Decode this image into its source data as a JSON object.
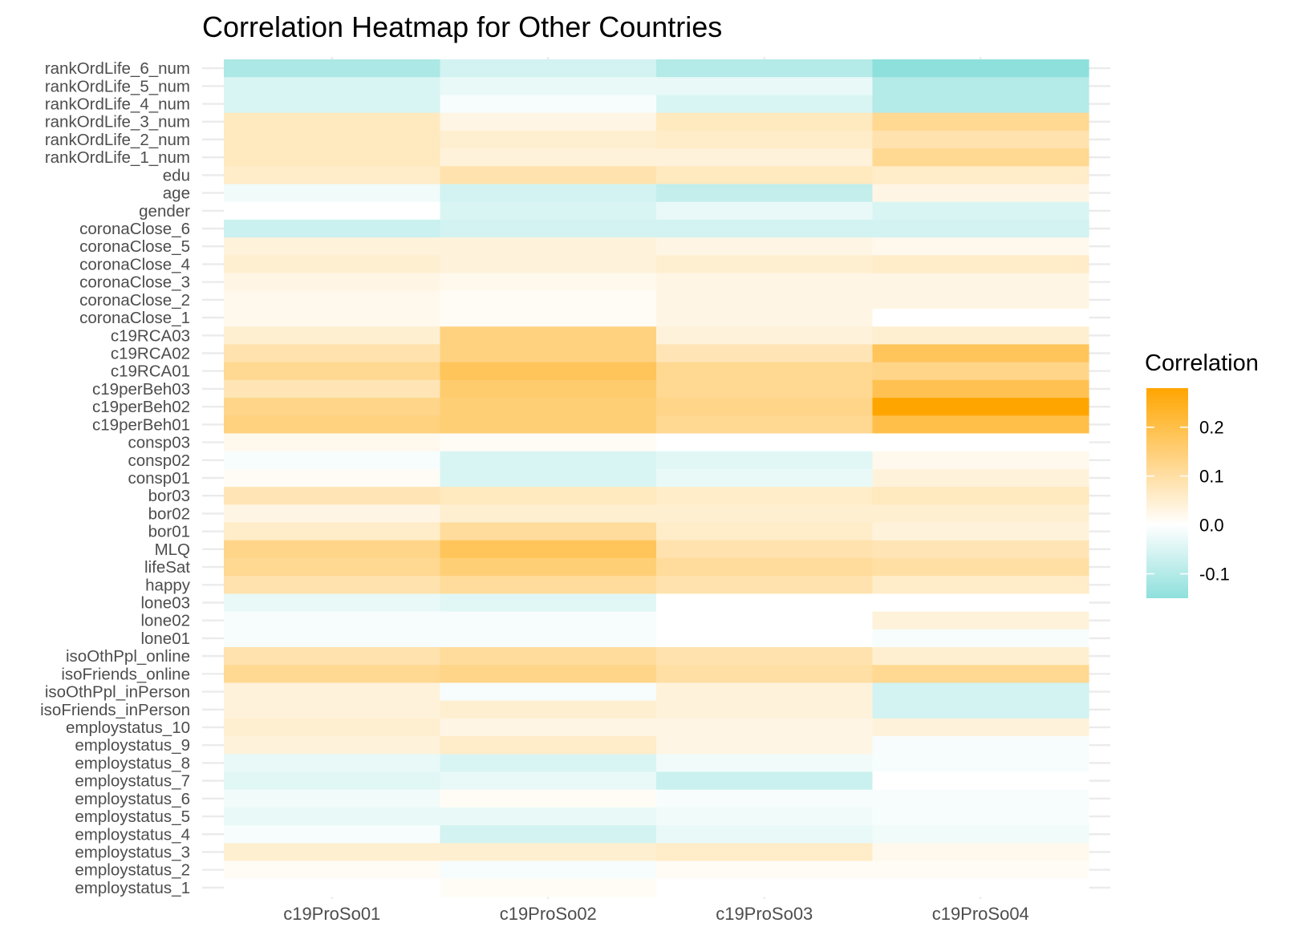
{
  "chart_data": {
    "type": "heatmap",
    "title": "Correlation Heatmap for Other Countries",
    "xlabel": "",
    "ylabel": "",
    "x_categories": [
      "c19ProSo01",
      "c19ProSo02",
      "c19ProSo03",
      "c19ProSo04"
    ],
    "y_categories": [
      "rankOrdLife_6_num",
      "rankOrdLife_5_num",
      "rankOrdLife_4_num",
      "rankOrdLife_3_num",
      "rankOrdLife_2_num",
      "rankOrdLife_1_num",
      "edu",
      "age",
      "gender",
      "coronaClose_6",
      "coronaClose_5",
      "coronaClose_4",
      "coronaClose_3",
      "coronaClose_2",
      "coronaClose_1",
      "c19RCA03",
      "c19RCA02",
      "c19RCA01",
      "c19perBeh03",
      "c19perBeh02",
      "c19perBeh01",
      "consp03",
      "consp02",
      "consp01",
      "bor03",
      "bor02",
      "bor01",
      "MLQ",
      "lifeSat",
      "happy",
      "lone03",
      "lone02",
      "lone01",
      "isoOthPpl_online",
      "isoFriends_online",
      "isoOthPpl_inPerson",
      "isoFriends_inPerson",
      "employstatus_10",
      "employstatus_9",
      "employstatus_8",
      "employstatus_7",
      "employstatus_6",
      "employstatus_5",
      "employstatus_4",
      "employstatus_3",
      "employstatus_2",
      "employstatus_1"
    ],
    "values": [
      [
        -0.11,
        -0.06,
        -0.1,
        -0.15
      ],
      [
        -0.05,
        -0.03,
        -0.03,
        -0.1
      ],
      [
        -0.05,
        -0.01,
        -0.05,
        -0.1
      ],
      [
        0.07,
        0.03,
        0.07,
        0.12
      ],
      [
        0.07,
        0.05,
        0.06,
        0.09
      ],
      [
        0.07,
        0.04,
        0.04,
        0.12
      ],
      [
        0.06,
        0.09,
        0.07,
        0.06
      ],
      [
        -0.02,
        -0.06,
        -0.08,
        0.03
      ],
      [
        0.0,
        -0.05,
        -0.03,
        -0.05
      ],
      [
        -0.07,
        -0.06,
        -0.06,
        -0.06
      ],
      [
        0.04,
        0.04,
        0.03,
        0.02
      ],
      [
        0.05,
        0.04,
        0.05,
        0.06
      ],
      [
        0.03,
        0.02,
        0.03,
        0.03
      ],
      [
        0.02,
        0.01,
        0.03,
        0.03
      ],
      [
        0.02,
        0.01,
        0.03,
        0.0
      ],
      [
        0.05,
        0.14,
        0.04,
        0.05
      ],
      [
        0.09,
        0.14,
        0.08,
        0.18
      ],
      [
        0.12,
        0.18,
        0.12,
        0.13
      ],
      [
        0.08,
        0.16,
        0.12,
        0.19
      ],
      [
        0.13,
        0.15,
        0.13,
        0.28
      ],
      [
        0.14,
        0.15,
        0.12,
        0.2
      ],
      [
        0.02,
        0.01,
        0.0,
        0.0
      ],
      [
        -0.01,
        -0.05,
        -0.04,
        0.02
      ],
      [
        0.01,
        -0.05,
        -0.03,
        0.04
      ],
      [
        0.08,
        0.07,
        0.06,
        0.07
      ],
      [
        0.03,
        0.05,
        0.05,
        0.05
      ],
      [
        0.06,
        0.11,
        0.06,
        0.04
      ],
      [
        0.13,
        0.18,
        0.09,
        0.08
      ],
      [
        0.12,
        0.15,
        0.11,
        0.1
      ],
      [
        0.09,
        0.11,
        0.09,
        0.06
      ],
      [
        -0.03,
        -0.04,
        0.0,
        0.0
      ],
      [
        -0.01,
        -0.01,
        0.0,
        0.04
      ],
      [
        -0.01,
        -0.01,
        0.0,
        -0.01
      ],
      [
        0.09,
        0.11,
        0.09,
        0.05
      ],
      [
        0.12,
        0.13,
        0.1,
        0.12
      ],
      [
        0.04,
        -0.01,
        0.04,
        -0.06
      ],
      [
        0.04,
        0.05,
        0.04,
        -0.06
      ],
      [
        0.05,
        0.03,
        0.03,
        0.04
      ],
      [
        0.04,
        0.06,
        0.03,
        -0.01
      ],
      [
        -0.03,
        -0.05,
        -0.02,
        -0.01
      ],
      [
        -0.04,
        -0.03,
        -0.07,
        0.0
      ],
      [
        -0.02,
        0.01,
        -0.01,
        -0.01
      ],
      [
        -0.03,
        -0.03,
        -0.02,
        -0.01
      ],
      [
        -0.01,
        -0.06,
        -0.03,
        -0.02
      ],
      [
        0.05,
        0.05,
        0.06,
        0.02
      ],
      [
        0.01,
        -0.01,
        0.01,
        0.01
      ],
      [
        0.0,
        0.01,
        0.0,
        0.0
      ]
    ],
    "color_scale": {
      "low": "#8ee0dc",
      "mid": "#ffffff",
      "high": "#ffa500",
      "domain": [
        -0.15,
        0.0,
        0.28
      ]
    },
    "legend": {
      "title": "Correlation",
      "ticks": [
        0.2,
        0.1,
        0.0,
        -0.1
      ],
      "tick_labels": [
        "0.2",
        "0.1",
        "0.0",
        "-0.1"
      ],
      "position": "right"
    },
    "grid": true
  }
}
